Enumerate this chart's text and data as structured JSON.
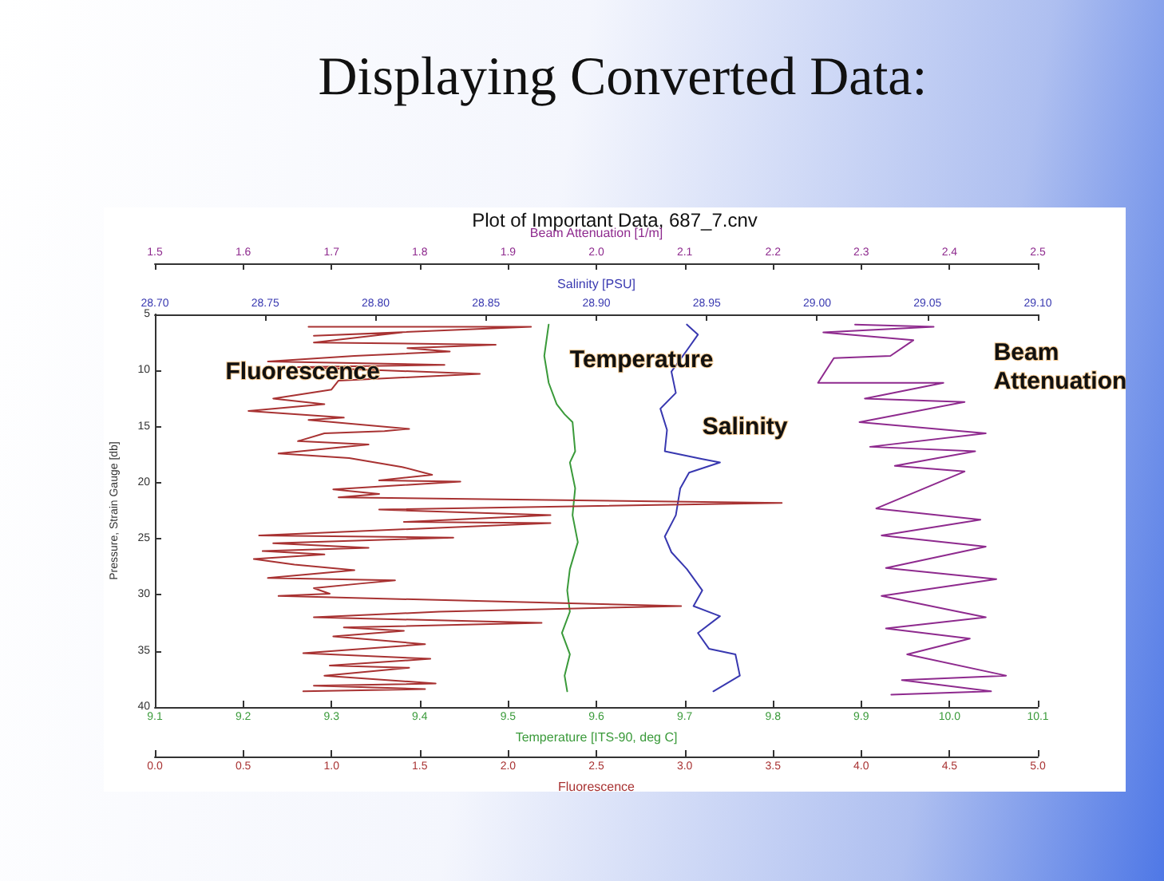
{
  "chart_data": [
    {
      "type": "line",
      "title": "Displaying Converted Data:",
      "subtitle": "Plot of Important Data, 687_7.cnv",
      "xlabel": "Temperature [ITS-90, deg C]",
      "x2label": "Salinity [PSU]",
      "ylabel": "Pressure, Strain Gauge [db]",
      "xlim": [
        9.1,
        10.1
      ],
      "xticks": [
        9.1,
        9.2,
        9.3,
        9.4,
        9.5,
        9.6,
        9.7,
        9.8,
        9.9,
        {
          "value": 10.0,
          "label": "10.0"
        },
        10.1
      ],
      "x2lim": [
        28.7,
        29.1
      ],
      "x2ticks": [
        {
          "value": 28.7,
          "label": "28.70"
        },
        28.75,
        {
          "value": 28.8,
          "label": "28.80"
        },
        28.85,
        {
          "value": 28.9,
          "label": "28.90"
        },
        28.95,
        {
          "value": 29.0,
          "label": "29.00"
        },
        29.05,
        {
          "value": 29.1,
          "label": "29.10"
        }
      ],
      "ylim": [
        40,
        5
      ],
      "yticks": [
        5,
        10,
        15,
        20,
        25,
        30,
        35,
        40
      ],
      "legend": false,
      "grid": false,
      "marker": "none",
      "line_style": "solid",
      "series": [
        {
          "name": "Temperature",
          "color": "#3a9a3a",
          "x": [
            9.546,
            9.541,
            9.546,
            9.555,
            9.564,
            9.573,
            9.576,
            9.57,
            9.576,
            9.573,
            9.579,
            9.57,
            9.567,
            9.57,
            9.561,
            9.57,
            9.564,
            9.567
          ],
          "values": [
            5.9,
            8.7,
            11.1,
            13.0,
            13.9,
            14.6,
            17.2,
            18.2,
            20.5,
            22.9,
            25.3,
            27.7,
            29.6,
            31.5,
            33.4,
            35.3,
            37.2,
            38.6
          ]
        },
        {
          "name": "Salinity",
          "axis": "x2",
          "color": "#3838b0",
          "x": [
            28.941,
            28.946,
            28.941,
            28.934,
            28.936,
            28.929,
            28.932,
            28.931,
            28.948,
            28.956,
            28.942,
            28.938,
            28.936,
            28.931,
            28.934,
            28.941,
            28.948,
            28.944,
            28.956,
            28.946,
            28.951,
            28.963,
            28.965,
            28.953
          ],
          "values": [
            5.9,
            6.8,
            8.2,
            10.1,
            12.0,
            13.4,
            15.3,
            17.2,
            17.9,
            18.2,
            19.1,
            20.5,
            22.9,
            24.8,
            26.2,
            27.7,
            29.6,
            31.0,
            31.9,
            33.4,
            34.8,
            35.3,
            37.2,
            38.6
          ]
        }
      ]
    },
    {
      "type": "line",
      "xlabel": "Fluorescence",
      "x2label": "Beam Attenuation [1/m]",
      "xlim": [
        0,
        5
      ],
      "xticks": [
        {
          "value": 0,
          "label": "0.0"
        },
        0.5,
        {
          "value": 1,
          "label": "1.0"
        },
        1.5,
        {
          "value": 2,
          "label": "2.0"
        },
        2.5,
        {
          "value": 3,
          "label": "3.0"
        },
        3.5,
        {
          "value": 4,
          "label": "4.0"
        },
        4.5,
        {
          "value": 5,
          "label": "5.0"
        }
      ],
      "x2lim": [
        1.5,
        2.5
      ],
      "x2ticks": [
        1.5,
        1.6,
        1.7,
        1.8,
        1.9,
        {
          "value": 2.0,
          "label": "2.0"
        },
        2.1,
        2.2,
        2.3,
        2.4,
        2.5
      ],
      "ylim": [
        40,
        5
      ],
      "tick_labels": "x",
      "legend": false,
      "grid": false,
      "marker": "none",
      "line_style": "solid",
      "series": [
        {
          "name": "Fluorescence",
          "color": "#a83232",
          "x": [
            0.87,
            2.13,
            0.9,
            1.4,
            0.9,
            1.93,
            1.43,
            1.67,
            1.13,
            0.64,
            1.64,
            0.81,
            1.84,
            1.04,
            1.0,
            0.67,
            0.96,
            0.53,
            1.07,
            0.87,
            1.44,
            1.3,
            0.96,
            0.81,
            1.21,
            0.7,
            1.1,
            1.4,
            1.57,
            1.27,
            1.73,
            1.01,
            1.27,
            1.04,
            3.55,
            1.27,
            2.24,
            1.41,
            2.24,
            0.59,
            1.69,
            0.67,
            1.21,
            0.61,
            0.96,
            0.56,
            0.79,
            1.13,
            0.64,
            1.36,
            1.16,
            0.9,
            0.99,
            0.7,
            2.98,
            1.61,
            0.9,
            2.19,
            1.07,
            1.41,
            1.01,
            1.53,
            0.84,
            1.56,
            0.99,
            1.44,
            0.96,
            1.59,
            0.9,
            1.53,
            0.84
          ],
          "values": [
            6.1,
            6.1,
            6.9,
            6.6,
            7.5,
            7.7,
            8.0,
            8.3,
            8.7,
            9.2,
            9.5,
            9.7,
            10.3,
            10.9,
            11.7,
            12.5,
            13.0,
            13.6,
            14.2,
            14.4,
            15.2,
            15.4,
            15.6,
            16.3,
            16.6,
            17.4,
            17.8,
            18.6,
            19.3,
            19.8,
            19.9,
            20.6,
            21.0,
            21.3,
            21.8,
            22.4,
            22.9,
            23.5,
            23.6,
            24.7,
            24.9,
            25.4,
            25.8,
            26.1,
            26.4,
            26.8,
            27.3,
            27.8,
            28.5,
            28.7,
            29.0,
            29.4,
            29.9,
            30.1,
            31.0,
            31.5,
            32.0,
            32.5,
            32.9,
            33.2,
            33.7,
            34.4,
            35.2,
            35.7,
            36.3,
            36.5,
            37.2,
            37.9,
            38.1,
            38.4,
            38.6
          ]
        },
        {
          "name": "Beam Attenuation",
          "axis": "x2",
          "color": "#8e2a8e",
          "x": [
            2.293,
            2.382,
            2.257,
            2.359,
            2.333,
            2.269,
            2.251,
            2.393,
            2.304,
            2.417,
            2.298,
            2.441,
            2.31,
            2.429,
            2.338,
            2.417,
            2.317,
            2.435,
            2.323,
            2.441,
            2.328,
            2.453,
            2.323,
            2.441,
            2.328,
            2.423,
            2.352,
            2.464,
            2.346,
            2.447,
            2.334
          ],
          "values": [
            5.9,
            6.1,
            6.6,
            7.3,
            8.7,
            8.9,
            11.1,
            11.1,
            12.5,
            12.8,
            14.6,
            15.6,
            16.8,
            17.2,
            18.5,
            19.0,
            22.3,
            23.3,
            24.7,
            25.7,
            27.6,
            28.6,
            30.1,
            32.0,
            33.0,
            33.9,
            35.3,
            37.2,
            37.6,
            38.6,
            38.9
          ]
        }
      ]
    }
  ]
}
